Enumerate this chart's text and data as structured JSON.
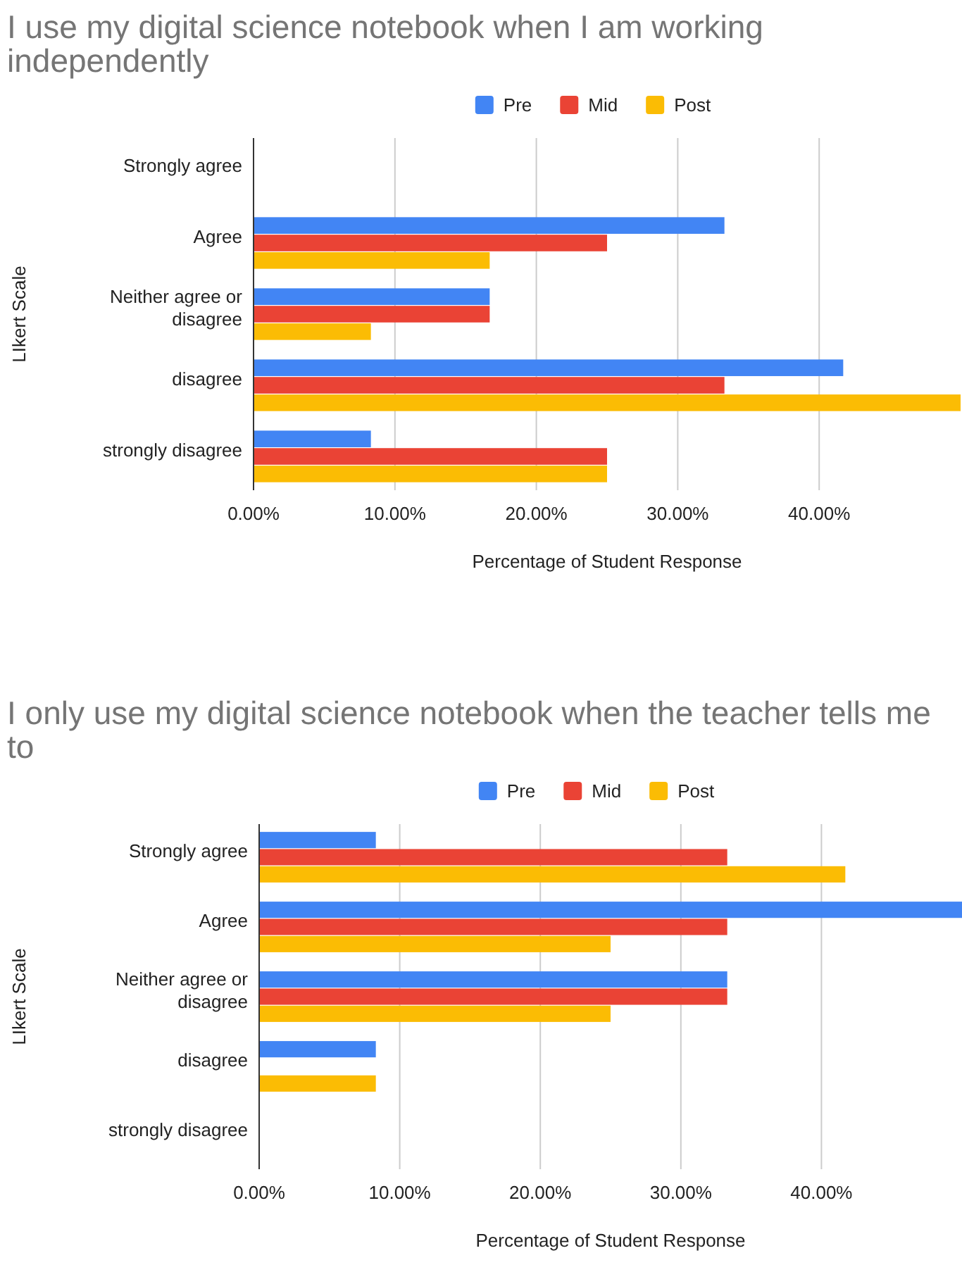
{
  "chart_data": [
    {
      "type": "bar",
      "orientation": "horizontal",
      "title": "I use my digital science notebook when I am working independently",
      "xlabel": "Percentage of Student Response",
      "ylabel": "LIkert Scale",
      "categories": [
        "Strongly agree",
        "Agree",
        "Neither agree or disagree",
        "disagree",
        "strongly disagree"
      ],
      "series": [
        {
          "name": "Pre",
          "color": "#4285f4",
          "values": [
            0,
            33.3,
            16.7,
            41.7,
            8.3
          ]
        },
        {
          "name": "Mid",
          "color": "#ea4335",
          "values": [
            0,
            25,
            16.7,
            33.3,
            25
          ]
        },
        {
          "name": "Post",
          "color": "#fbbc04",
          "values": [
            0,
            16.7,
            8.3,
            50,
            25
          ]
        }
      ],
      "xlim": [
        0,
        50
      ],
      "xticks": [
        {
          "value": 0,
          "label": "0.00%"
        },
        {
          "value": 10,
          "label": "10.00%"
        },
        {
          "value": 20,
          "label": "20.00%"
        },
        {
          "value": 30,
          "label": "30.00%"
        },
        {
          "value": 40,
          "label": "40.00%"
        }
      ],
      "grid": "x",
      "legend": "top"
    },
    {
      "type": "bar",
      "orientation": "horizontal",
      "title": "I only use my digital science notebook when the teacher tells me to",
      "xlabel": "Percentage of Student Response",
      "ylabel": "LIkert Scale",
      "categories": [
        "Strongly agree",
        "Agree",
        "Neither agree or disagree",
        "disagree",
        "strongly disagree"
      ],
      "series": [
        {
          "name": "Pre",
          "color": "#4285f4",
          "values": [
            8.3,
            50,
            33.3,
            8.3,
            0
          ]
        },
        {
          "name": "Mid",
          "color": "#ea4335",
          "values": [
            33.3,
            33.3,
            33.3,
            0,
            0
          ]
        },
        {
          "name": "Post",
          "color": "#fbbc04",
          "values": [
            41.7,
            25,
            25,
            8.3,
            0
          ]
        }
      ],
      "xlim": [
        0,
        50
      ],
      "xticks": [
        {
          "value": 0,
          "label": "0.00%"
        },
        {
          "value": 10,
          "label": "10.00%"
        },
        {
          "value": 20,
          "label": "20.00%"
        },
        {
          "value": 30,
          "label": "30.00%"
        },
        {
          "value": 40,
          "label": "40.00%"
        }
      ],
      "grid": "x",
      "legend": "top"
    }
  ]
}
